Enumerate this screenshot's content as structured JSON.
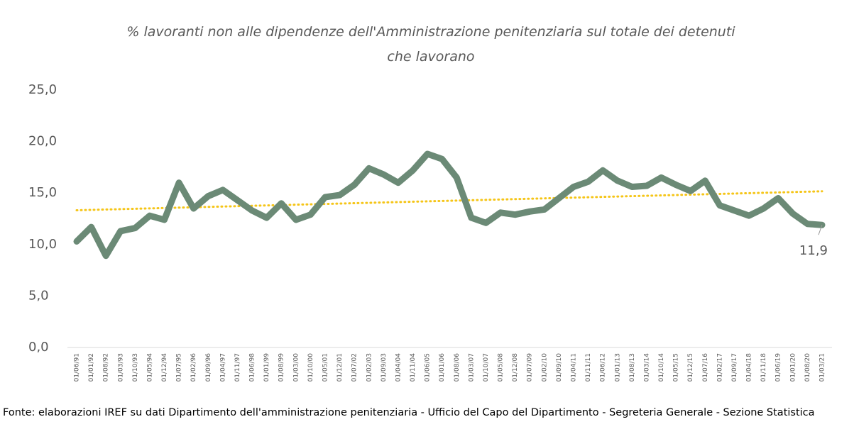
{
  "chart_data": {
    "type": "line",
    "title": "% lavoranti non alle dipendenze dell'Amministrazione penitenziaria sul totale dei detenuti che lavorano",
    "categories": [
      "01/06/91",
      "01/01/92",
      "01/08/92",
      "01/03/93",
      "01/10/93",
      "01/05/94",
      "01/12/94",
      "01/07/95",
      "01/02/96",
      "01/09/96",
      "01/04/97",
      "01/11/97",
      "01/06/98",
      "01/01/99",
      "01/08/99",
      "01/03/00",
      "01/10/00",
      "01/05/01",
      "01/12/01",
      "01/07/02",
      "01/02/03",
      "01/09/03",
      "01/04/04",
      "01/11/04",
      "01/06/05",
      "01/01/06",
      "01/08/06",
      "01/03/07",
      "01/10/07",
      "01/05/08",
      "01/12/08",
      "01/07/09",
      "01/02/10",
      "01/09/10",
      "01/04/11",
      "01/11/11",
      "01/06/12",
      "01/01/13",
      "01/08/13",
      "01/03/14",
      "01/10/14",
      "01/05/15",
      "01/12/15",
      "01/07/16",
      "01/02/17",
      "01/09/17",
      "01/04/18",
      "01/11/18",
      "01/06/19",
      "01/01/20",
      "01/08/20",
      "01/03/21"
    ],
    "values": [
      10.3,
      11.7,
      8.9,
      11.3,
      11.6,
      12.8,
      12.4,
      16.0,
      13.5,
      14.7,
      15.3,
      14.3,
      13.3,
      12.6,
      14.0,
      12.4,
      12.9,
      14.6,
      14.8,
      15.8,
      17.4,
      16.8,
      16.0,
      17.2,
      18.8,
      18.3,
      16.5,
      12.6,
      12.1,
      13.1,
      12.9,
      13.2,
      13.4,
      14.5,
      15.6,
      16.1,
      17.2,
      16.2,
      15.6,
      15.7,
      16.5,
      15.8,
      15.2,
      16.2,
      13.8,
      13.3,
      12.8,
      13.5,
      14.5,
      13.0,
      12.0,
      11.9
    ],
    "value_labels": {
      "51": "11,9"
    },
    "color": "#6b8a76",
    "trendline": true,
    "trend_color": "#f5c518",
    "ylim": [
      0,
      25
    ],
    "yticks": [
      {
        "value": 0,
        "label": "0,0"
      },
      {
        "value": 5,
        "label": "5,0"
      },
      {
        "value": 10,
        "label": "10,0"
      },
      {
        "value": 15,
        "label": "15,0"
      },
      {
        "value": 20,
        "label": "20,0"
      },
      {
        "value": 25,
        "label": "25,0"
      }
    ],
    "grid": false,
    "source": "Fonte: elaborazioni IREF su dati Dipartimento dell'amministrazione penitenziaria - Ufficio del Capo del Dipartimento - Segreteria Generale - Sezione Statistica"
  }
}
